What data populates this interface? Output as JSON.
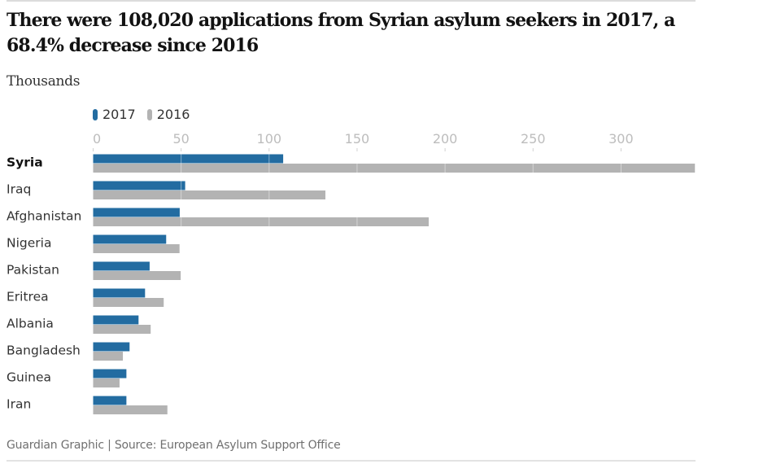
{
  "header": {
    "title": "There were 108,020 applications from Syrian asylum seekers in 2017, a 68.4% decrease since 2016",
    "subtitle": "Thousands"
  },
  "footer": {
    "text": "Guardian Graphic | Source: European Asylum Support Office"
  },
  "colors": {
    "series_2017": "#236ca1",
    "series_2016": "#b3b3b3"
  },
  "chart_data": {
    "type": "bar",
    "orientation": "horizontal",
    "title": "There were 108,020 applications from Syrian asylum seekers in 2017, a 68.4% decrease since 2016",
    "xlabel": "Thousands",
    "ylabel": "",
    "xlim": [
      0,
      342
    ],
    "xticks": [
      0,
      50,
      100,
      150,
      200,
      250,
      300
    ],
    "grid": true,
    "legend_position": "top-left",
    "highlight_category": "Syria",
    "categories": [
      "Syria",
      "Iraq",
      "Afghanistan",
      "Nigeria",
      "Pakistan",
      "Eritrea",
      "Albania",
      "Bangladesh",
      "Guinea",
      "Iran"
    ],
    "series": [
      {
        "name": "2017",
        "color": "#236ca1",
        "values": [
          108.0,
          52.3,
          49.2,
          41.5,
          32.1,
          29.5,
          25.8,
          20.7,
          18.9,
          18.9
        ]
      },
      {
        "name": "2016",
        "color": "#b3b3b3",
        "values": [
          342.0,
          132.0,
          190.7,
          49.1,
          49.8,
          40.1,
          32.7,
          16.9,
          15.0,
          42.2
        ]
      }
    ]
  }
}
